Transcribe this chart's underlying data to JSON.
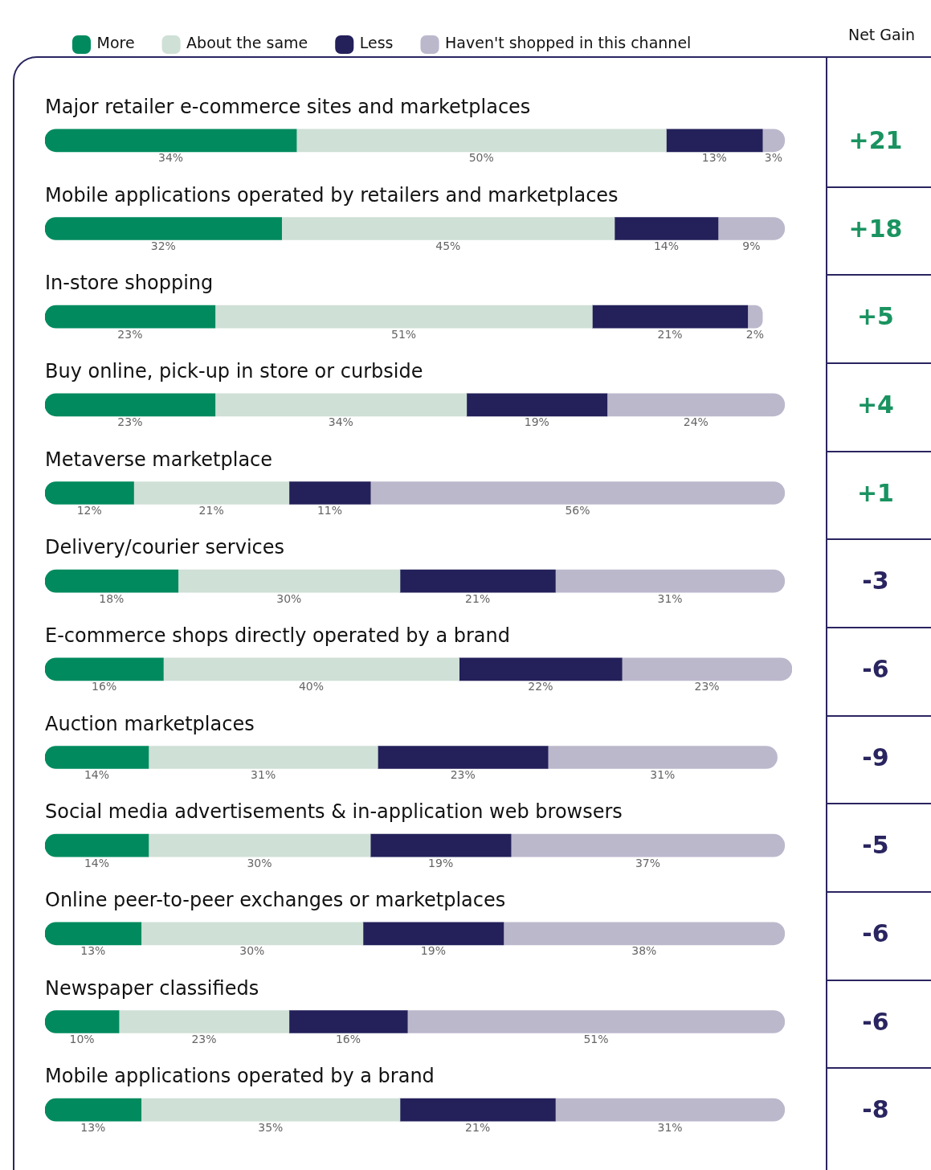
{
  "chart_data": {
    "type": "bar",
    "orientation": "horizontal",
    "stacked": true,
    "legend": "top left",
    "categories": [
      "Major retailer e-commerce sites and marketplaces",
      "Mobile applications operated by retailers and marketplaces",
      "In-store shopping",
      "Buy online, pick-up in store or curbside",
      "Metaverse marketplace",
      "Delivery/courier services",
      "E-commerce shops directly operated by a brand",
      "Auction marketplaces",
      "Social media advertisements & in-application web browsers",
      "Online peer-to-peer exchanges or marketplaces",
      "Newspaper classifieds",
      "Mobile applications operated by a brand"
    ],
    "series": [
      {
        "name": "More",
        "color": "#008a5e",
        "values": [
          34,
          32,
          23,
          23,
          12,
          18,
          16,
          14,
          14,
          13,
          10,
          13
        ],
        "value_labels": [
          "34%",
          "32%",
          "23%",
          "23%",
          "12%",
          "18%",
          "16%",
          "14%",
          "14%",
          "13%",
          "10%",
          "13%"
        ]
      },
      {
        "name": "About the same",
        "color": "#cfe0d6",
        "values": [
          50,
          45,
          51,
          34,
          21,
          30,
          40,
          31,
          30,
          30,
          23,
          35
        ],
        "value_labels": [
          "50%",
          "45%",
          "51%",
          "34%",
          "21%",
          "30%",
          "40%",
          "31%",
          "30%",
          "30%",
          "23%",
          "35%"
        ]
      },
      {
        "name": "Less",
        "color": "#23205a",
        "values": [
          13,
          14,
          21,
          19,
          11,
          21,
          22,
          23,
          19,
          19,
          16,
          21
        ],
        "value_labels": [
          "13%",
          "14%",
          "21%",
          "19%",
          "11%",
          "21%",
          "22%",
          "23%",
          "19%",
          "19%",
          "16%",
          "21%"
        ]
      },
      {
        "name": "Haven't shopped in this channel",
        "color": "#bcb8cc",
        "values": [
          3,
          9,
          2,
          24,
          56,
          31,
          23,
          31,
          37,
          38,
          51,
          31
        ],
        "value_labels": [
          "3%",
          "9%",
          "2%",
          "24%",
          "56%",
          "31%",
          "23%",
          "31%",
          "37%",
          "38%",
          "51%",
          "31%"
        ]
      }
    ],
    "annotations": [
      "Net Gain",
      "+21",
      "+18",
      "+5",
      "+4",
      "+1",
      "-3",
      "-6",
      "-9",
      "-5",
      "-6",
      "-6",
      "-8"
    ]
  }
}
